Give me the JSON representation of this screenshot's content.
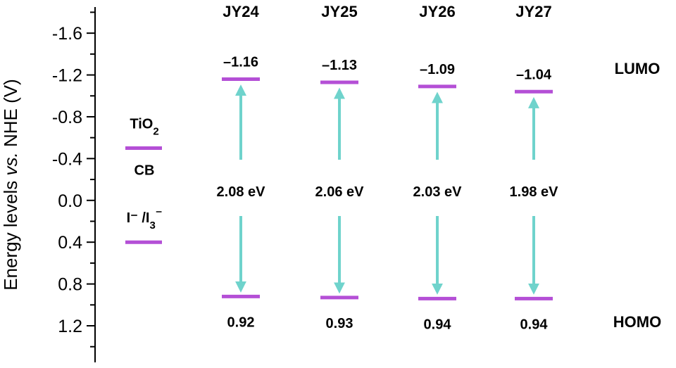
{
  "chart_data": {
    "type": "energy-level-diagram",
    "ylabel_pre": "Energy levels ",
    "ylabel_ital": "vs.",
    "ylabel_post": " NHE (V)",
    "yticks": [
      "-1.6",
      "-1.2",
      "-0.8",
      "-0.4",
      "0.0",
      "0.4",
      "0.8",
      "1.2"
    ],
    "ytick_values": [
      -1.6,
      -1.2,
      -0.8,
      -0.4,
      0.0,
      0.4,
      0.8,
      1.2
    ],
    "ylim": [
      -1.85,
      1.55
    ],
    "y_inverted": true,
    "references": [
      {
        "label_main": "TiO",
        "label_sub": "2",
        "label_below": "CB",
        "value": -0.5
      },
      {
        "label_main": "I⁻ /I",
        "label_sub": "3",
        "label_sup": "⁻",
        "value": 0.4
      }
    ],
    "dyes": [
      {
        "name": "JY24",
        "lumo": -1.16,
        "lumo_label": "–1.16",
        "homo": 0.92,
        "homo_label": "0.92",
        "gap_label": "2.08 eV"
      },
      {
        "name": "JY25",
        "lumo": -1.13,
        "lumo_label": "–1.13",
        "homo": 0.93,
        "homo_label": "0.93",
        "gap_label": "2.06 eV"
      },
      {
        "name": "JY26",
        "lumo": -1.09,
        "lumo_label": "–1.09",
        "homo": 0.94,
        "homo_label": "0.94",
        "gap_label": "2.03 eV"
      },
      {
        "name": "JY27",
        "lumo": -1.04,
        "lumo_label": "–1.04",
        "homo": 0.94,
        "homo_label": "0.94",
        "gap_label": "1.98 eV"
      }
    ],
    "lumo_label": "LUMO",
    "homo_label": "HOMO",
    "colors": {
      "level": "#b44fd6",
      "arrow": "#6fd3cc",
      "axis": "#000000"
    }
  }
}
